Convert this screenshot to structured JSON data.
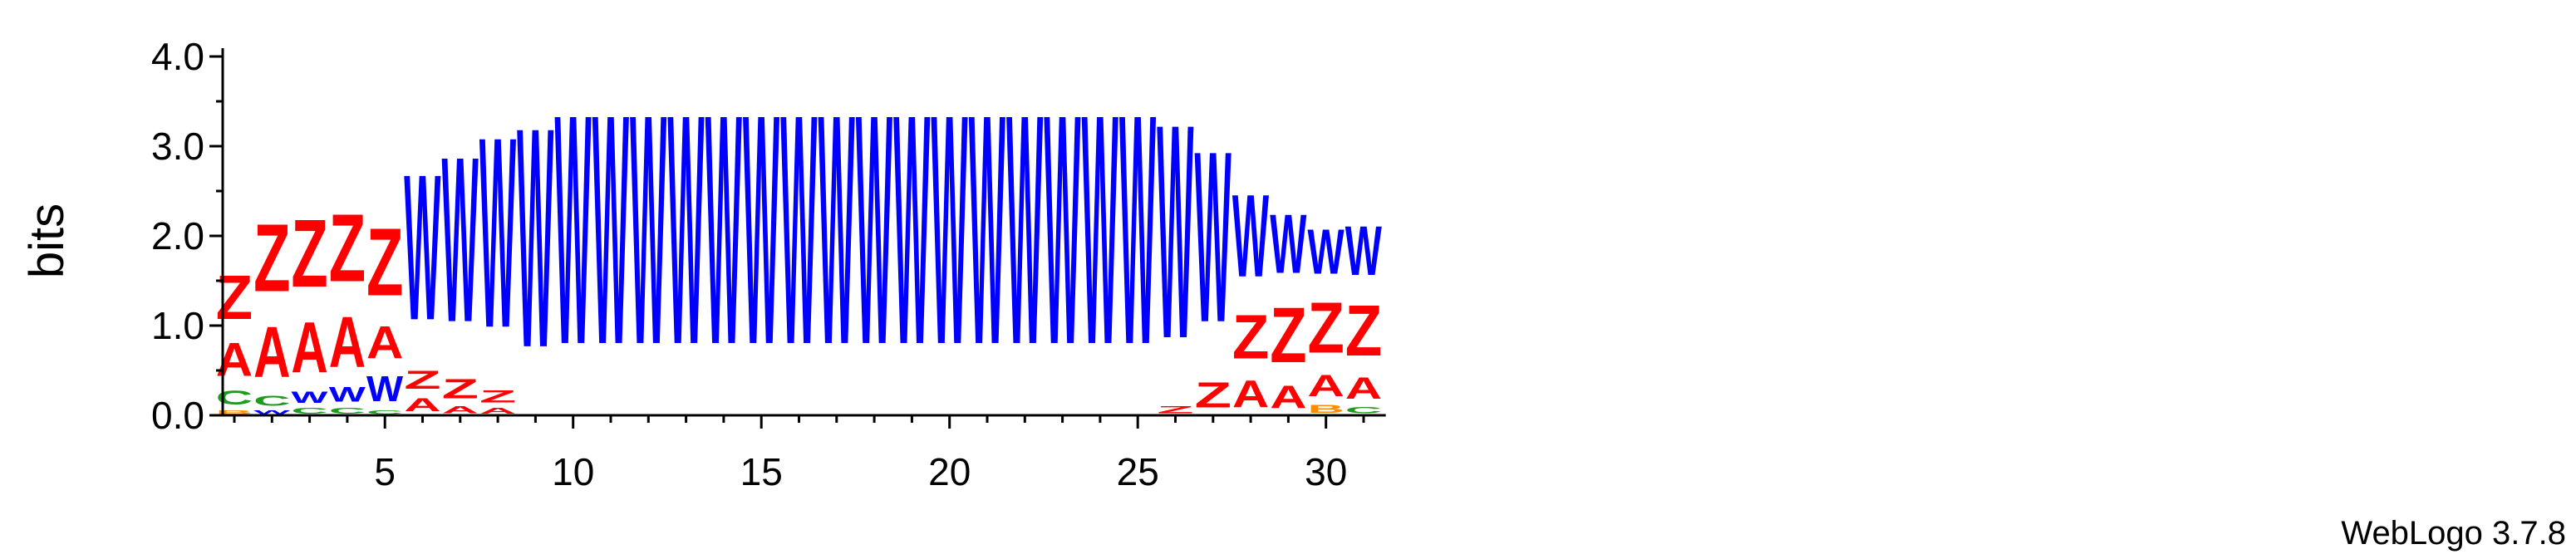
{
  "chart_data": {
    "type": "sequence-logo",
    "ylabel": "bits",
    "ylim": [
      0,
      4.0
    ],
    "yticks": [
      "0.0",
      "1.0",
      "2.0",
      "3.0",
      "4.0"
    ],
    "xticks": [
      "5",
      "10",
      "15",
      "20",
      "25",
      "30"
    ],
    "xtick_positions": [
      5,
      10,
      15,
      20,
      25,
      30
    ],
    "footer": "WebLogo 3.7.8",
    "colors": {
      "Z": "#ff0000",
      "A": "#ff0000",
      "W": "#0000ff",
      "C": "#1c9b1c",
      "B": "#ff8c00"
    },
    "columns": [
      {
        "pos": 1,
        "stack": [
          [
            "B",
            0.07
          ],
          [
            "C",
            0.25
          ],
          [
            "A",
            0.6
          ],
          [
            "Z",
            0.78
          ]
        ]
      },
      {
        "pos": 2,
        "stack": [
          [
            "W",
            0.07
          ],
          [
            "C",
            0.18
          ],
          [
            "A",
            0.9
          ],
          [
            "Z",
            1.2
          ]
        ]
      },
      {
        "pos": 3,
        "stack": [
          [
            "C",
            0.1
          ],
          [
            "W",
            0.2
          ],
          [
            "A",
            0.9
          ],
          [
            "Z",
            1.2
          ]
        ]
      },
      {
        "pos": 4,
        "stack": [
          [
            "C",
            0.1
          ],
          [
            "W",
            0.26
          ],
          [
            "A",
            0.9
          ],
          [
            "Z",
            1.2
          ]
        ]
      },
      {
        "pos": 5,
        "stack": [
          [
            "C",
            0.07
          ],
          [
            "W",
            0.45
          ],
          [
            "A",
            0.58
          ],
          [
            "Z",
            1.2
          ]
        ]
      },
      {
        "pos": 6,
        "stack": [
          [
            "A",
            0.23
          ],
          [
            "Z",
            0.33
          ],
          [
            "W",
            2.6
          ]
        ]
      },
      {
        "pos": 7,
        "stack": [
          [
            "A",
            0.12
          ],
          [
            "Z",
            0.35
          ],
          [
            "W",
            2.95
          ]
        ]
      },
      {
        "pos": 8,
        "stack": [
          [
            "A",
            0.1
          ],
          [
            "Z",
            0.22
          ],
          [
            "W",
            3.4
          ]
        ]
      },
      {
        "pos": 9,
        "stack": [
          [
            "W",
            3.92
          ]
        ]
      },
      {
        "pos": 10,
        "stack": [
          [
            "W",
            4.1
          ]
        ]
      },
      {
        "pos": 11,
        "stack": [
          [
            "W",
            4.1
          ]
        ]
      },
      {
        "pos": 12,
        "stack": [
          [
            "W",
            4.1
          ]
        ]
      },
      {
        "pos": 13,
        "stack": [
          [
            "W",
            4.1
          ]
        ]
      },
      {
        "pos": 14,
        "stack": [
          [
            "W",
            4.1
          ]
        ]
      },
      {
        "pos": 15,
        "stack": [
          [
            "W",
            4.1
          ]
        ]
      },
      {
        "pos": 16,
        "stack": [
          [
            "W",
            4.1
          ]
        ]
      },
      {
        "pos": 17,
        "stack": [
          [
            "W",
            4.1
          ]
        ]
      },
      {
        "pos": 18,
        "stack": [
          [
            "W",
            4.1
          ]
        ]
      },
      {
        "pos": 19,
        "stack": [
          [
            "W",
            4.1
          ]
        ]
      },
      {
        "pos": 20,
        "stack": [
          [
            "W",
            4.1
          ]
        ]
      },
      {
        "pos": 21,
        "stack": [
          [
            "W",
            4.1
          ]
        ]
      },
      {
        "pos": 22,
        "stack": [
          [
            "W",
            4.1
          ]
        ]
      },
      {
        "pos": 23,
        "stack": [
          [
            "W",
            4.1
          ]
        ]
      },
      {
        "pos": 24,
        "stack": [
          [
            "W",
            4.1
          ]
        ]
      },
      {
        "pos": 25,
        "stack": [
          [
            "W",
            4.1
          ]
        ]
      },
      {
        "pos": 26,
        "stack": [
          [
            "Z",
            0.12
          ],
          [
            "W",
            3.82
          ]
        ]
      },
      {
        "pos": 27,
        "stack": [
          [
            "Z",
            0.45
          ],
          [
            "W",
            3.05
          ]
        ]
      },
      {
        "pos": 28,
        "stack": [
          [
            "A",
            0.48
          ],
          [
            "Z",
            0.78
          ],
          [
            "W",
            1.47
          ]
        ]
      },
      {
        "pos": 29,
        "stack": [
          [
            "A",
            0.4
          ],
          [
            "Z",
            0.98
          ],
          [
            "W",
            1.05
          ]
        ]
      },
      {
        "pos": 30,
        "stack": [
          [
            "B",
            0.14
          ],
          [
            "A",
            0.38
          ],
          [
            "Z",
            0.9
          ],
          [
            "W",
            0.8
          ]
        ]
      },
      {
        "pos": 31,
        "stack": [
          [
            "C",
            0.11
          ],
          [
            "A",
            0.38
          ],
          [
            "Z",
            0.9
          ],
          [
            "W",
            0.88
          ]
        ]
      }
    ]
  }
}
